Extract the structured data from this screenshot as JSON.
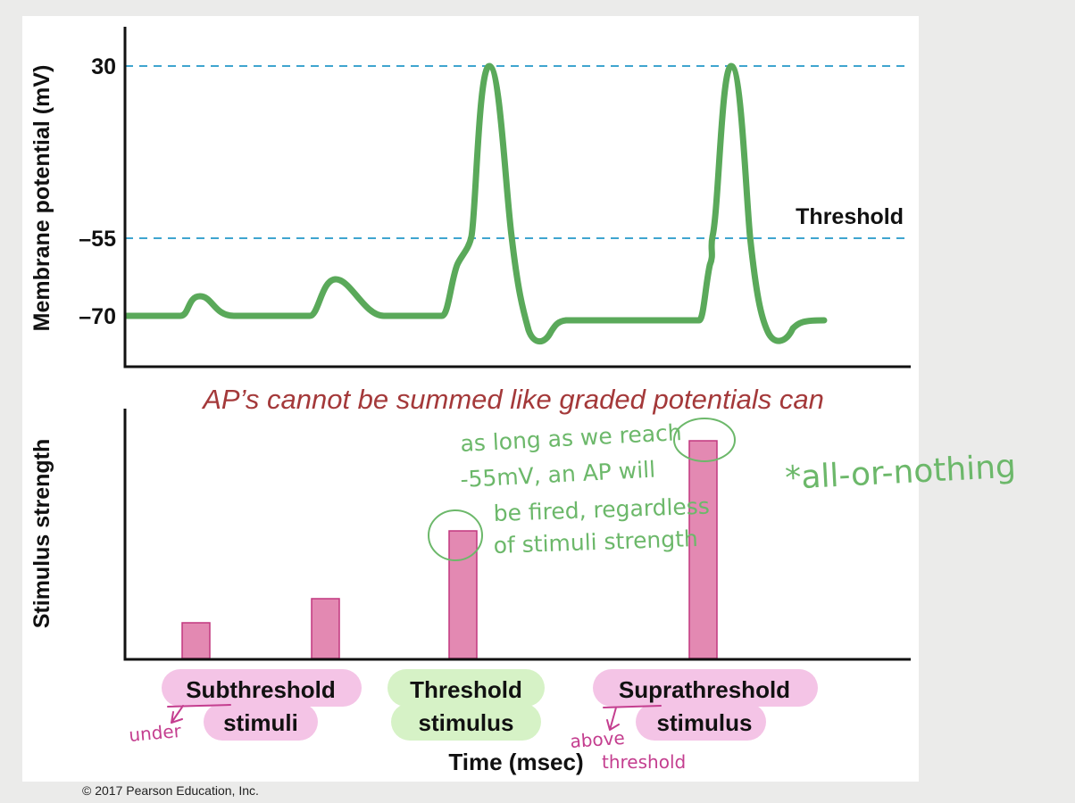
{
  "colors": {
    "background": "#ebebea",
    "panel": "#ffffff",
    "trace": "#5aa95a",
    "threshold_line": "#3fa5cf",
    "bar_fill": "#e389b2",
    "bar_stroke": "#c2377f",
    "highlight_pink": "#f4c4e6",
    "highlight_green": "#d6f2c6",
    "annotation_red": "#a4393a",
    "annotation_green": "#6cb86a",
    "annotation_pink": "#c43e8f"
  },
  "copyright": "© 2017 Pearson Education, Inc.",
  "chart_data": [
    {
      "type": "line",
      "title": "",
      "ylabel": "Membrane potential (mV)",
      "xlabel": "",
      "yticks": [
        30,
        -55,
        -70
      ],
      "reference_lines": [
        {
          "value": 30,
          "style": "dashed"
        },
        {
          "value": -55,
          "style": "dashed",
          "label": "Threshold"
        }
      ],
      "series": [
        {
          "points": [
            [
              0,
              -70
            ],
            [
              7,
              -70
            ],
            [
              9,
              -67
            ],
            [
              11,
              -67
            ],
            [
              14,
              -70
            ],
            [
              23,
              -70
            ],
            [
              26,
              -64
            ],
            [
              28,
              -64
            ],
            [
              33,
              -70
            ],
            [
              40,
              -70
            ],
            [
              42,
              -62
            ],
            [
              44,
              -55
            ],
            [
              47,
              30
            ],
            [
              50,
              -55
            ],
            [
              52,
              -70
            ],
            [
              54,
              -72
            ],
            [
              57,
              -70
            ],
            [
              73,
              -70
            ],
            [
              74,
              -62
            ],
            [
              76,
              -55
            ],
            [
              79,
              30
            ],
            [
              82,
              -55
            ],
            [
              84,
              -70
            ],
            [
              86,
              -72
            ],
            [
              88,
              -70
            ],
            [
              90,
              -70
            ]
          ]
        }
      ]
    },
    {
      "type": "bar",
      "title": "",
      "ylabel": "Stimulus strength",
      "xlabel": "Time (msec)",
      "bars": [
        {
          "x": 9,
          "value": 14
        },
        {
          "x": 24,
          "value": 24
        },
        {
          "x": 40,
          "value": 52
        },
        {
          "x": 68,
          "value": 90
        }
      ],
      "groups": [
        {
          "line1": "Subthreshold",
          "line2": "stimuli",
          "highlight": "pink"
        },
        {
          "line1": "Threshold",
          "line2": "stimulus",
          "highlight": "green"
        },
        {
          "line1": "Suprathreshold",
          "line2": "stimulus",
          "highlight": "pink"
        }
      ]
    }
  ],
  "annotations": {
    "headline": "AP’s cannot be summed like graded potentials can",
    "note_lines": [
      "as long as we reach",
      "-55mV, an AP will",
      "be fired, regardless",
      "of stimuli strength"
    ],
    "side_note": "*all-or-nothing",
    "under": "under",
    "above_line1": "above",
    "above_line2": "threshold"
  }
}
